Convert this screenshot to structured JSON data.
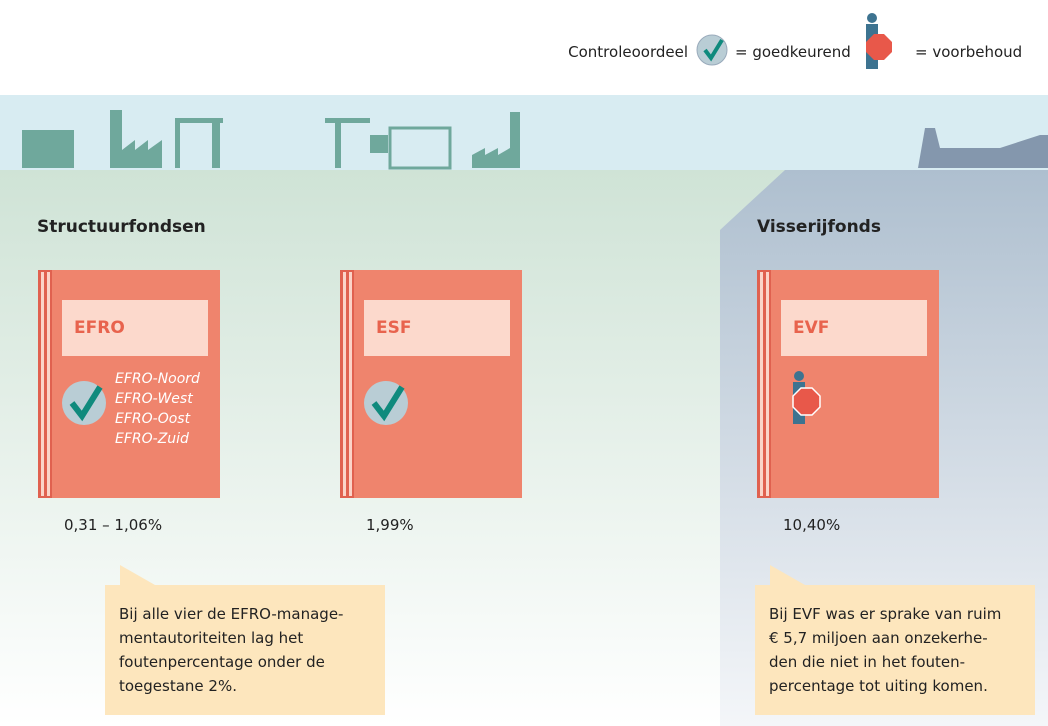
{
  "legend": {
    "label": "Controleoordeel",
    "approved": "= goedkeurend",
    "reservation": "= voorbehoud"
  },
  "sections": [
    {
      "title": "Structuurfondsen"
    },
    {
      "title": "Visserijfonds"
    }
  ],
  "funds": [
    {
      "name": "EFRO",
      "subs": [
        "EFRO-Noord",
        "EFRO-West",
        "EFRO-Oost",
        "EFRO-Zuid"
      ],
      "percentage": "0,31 – 1,06%"
    },
    {
      "name": "ESF",
      "percentage": "1,99%"
    },
    {
      "name": "EVF",
      "percentage": "10,40%"
    }
  ],
  "callouts": [
    {
      "lines": [
        "Bij alle vier de EFRO-manage-",
        "mentautoriteiten lag het",
        "foutenpercentage onder de",
        "toegestane 2%."
      ]
    },
    {
      "lines": [
        "Bij EVF was er sprake van ruim",
        "€ 5,7 miljoen aan onzekerhe-",
        "den die niet in het fouten-",
        "percentage tot uiting komen."
      ]
    }
  ]
}
